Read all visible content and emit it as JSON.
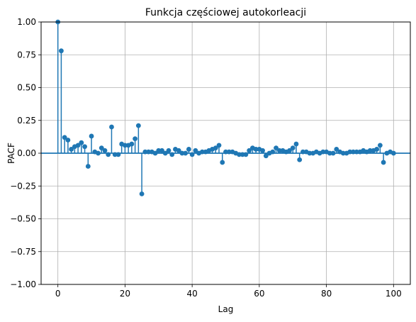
{
  "chart_data": {
    "type": "stem",
    "title": "Funkcja częściowej autokorleacji",
    "xlabel": "Lag",
    "ylabel": "PACF",
    "xlim": [
      -5,
      105
    ],
    "ylim": [
      -1.0,
      1.0
    ],
    "grid": true,
    "colors": {
      "series": "#1f77b4",
      "grid": "#b0b0b0",
      "axis": "#000000"
    },
    "x_ticks": [
      0,
      20,
      40,
      60,
      80,
      100
    ],
    "x_tick_labels": [
      "0",
      "20",
      "40",
      "60",
      "80",
      "100"
    ],
    "y_ticks": [
      -1.0,
      -0.75,
      -0.5,
      -0.25,
      0.0,
      0.25,
      0.5,
      0.75,
      1.0
    ],
    "y_tick_labels": [
      "−1.00",
      "−0.75",
      "−0.50",
      "−0.25",
      "0.00",
      "0.25",
      "0.50",
      "0.75",
      "1.00"
    ],
    "lags": [
      0,
      1,
      2,
      3,
      4,
      5,
      6,
      7,
      8,
      9,
      10,
      11,
      12,
      13,
      14,
      15,
      16,
      17,
      18,
      19,
      20,
      21,
      22,
      23,
      24,
      25,
      26,
      27,
      28,
      29,
      30,
      31,
      32,
      33,
      34,
      35,
      36,
      37,
      38,
      39,
      40,
      41,
      42,
      43,
      44,
      45,
      46,
      47,
      48,
      49,
      50,
      51,
      52,
      53,
      54,
      55,
      56,
      57,
      58,
      59,
      60,
      61,
      62,
      63,
      64,
      65,
      66,
      67,
      68,
      69,
      70,
      71,
      72,
      73,
      74,
      75,
      76,
      77,
      78,
      79,
      80,
      81,
      82,
      83,
      84,
      85,
      86,
      87,
      88,
      89,
      90,
      91,
      92,
      93,
      94,
      95,
      96,
      97,
      98,
      99,
      100
    ],
    "values": [
      1.0,
      0.78,
      0.12,
      0.1,
      0.03,
      0.05,
      0.06,
      0.08,
      0.05,
      -0.1,
      0.13,
      0.01,
      0.0,
      0.04,
      0.02,
      -0.01,
      0.2,
      -0.01,
      -0.01,
      0.07,
      0.06,
      0.06,
      0.07,
      0.11,
      0.21,
      -0.31,
      0.01,
      0.01,
      0.01,
      0.0,
      0.02,
      0.02,
      0.0,
      0.02,
      -0.01,
      0.03,
      0.02,
      0.0,
      0.0,
      0.03,
      -0.01,
      0.02,
      0.0,
      0.01,
      0.01,
      0.02,
      0.03,
      0.04,
      0.06,
      -0.07,
      0.01,
      0.01,
      0.01,
      0.0,
      -0.01,
      -0.01,
      -0.01,
      0.02,
      0.04,
      0.03,
      0.03,
      0.02,
      -0.02,
      0.0,
      0.01,
      0.04,
      0.02,
      0.02,
      0.01,
      0.02,
      0.04,
      0.07,
      -0.05,
      0.01,
      0.01,
      0.0,
      0.0,
      0.01,
      0.0,
      0.01,
      0.01,
      0.0,
      0.0,
      0.03,
      0.01,
      0.0,
      0.0,
      0.01,
      0.01,
      0.01,
      0.01,
      0.02,
      0.01,
      0.02,
      0.02,
      0.03,
      0.06,
      -0.07,
      0.0,
      0.01,
      0.0
    ]
  }
}
